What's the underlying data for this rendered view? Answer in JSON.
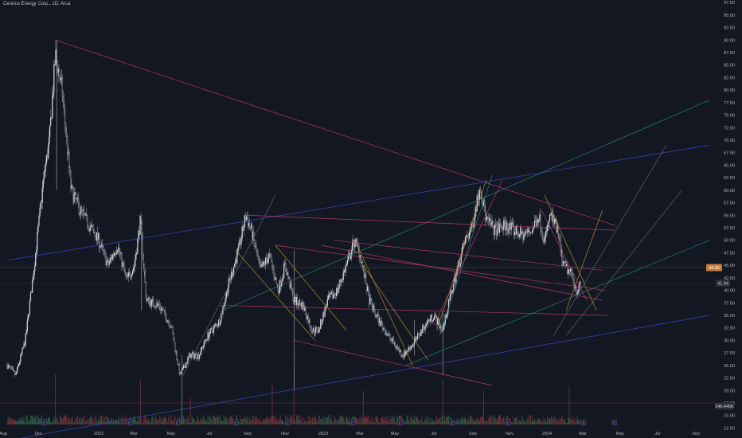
{
  "header": {
    "title": "Centrus Energy Corp., 1D, Arca"
  },
  "chart_data": {
    "type": "candlestick",
    "title": "Centrus Energy Corp., 1D, Arca",
    "y_ticks": [
      "12.50",
      "15.00",
      "17.50",
      "20.00",
      "22.50",
      "25.00",
      "27.50",
      "30.00",
      "32.50",
      "35.00",
      "37.50",
      "40.00",
      "42.50",
      "45.00",
      "47.50",
      "50.00",
      "52.50",
      "55.00",
      "57.50",
      "60.00",
      "62.50",
      "65.00",
      "67.50",
      "70.00",
      "72.50",
      "75.00",
      "77.50",
      "80.00",
      "82.50",
      "85.00",
      "87.50",
      "90.00",
      "92.50",
      "95.00",
      "97.50"
    ],
    "ylim": [
      10.5,
      98
    ],
    "x_ticks": [
      "Aug",
      "Oct",
      "2022",
      "Mar",
      "May",
      "Jul",
      "Sep",
      "Nov",
      "2023",
      "Mar",
      "May",
      "Jul",
      "Sep",
      "Nov",
      "2024",
      "Mar",
      "May",
      "Jul",
      "Sep"
    ],
    "last_price_label": "44.55",
    "last_price": 44.55,
    "marker_price_label": "41.44",
    "marker_price": 41.44,
    "volume_label": "246.445K",
    "price_path": [
      [
        "2021-08-01",
        25
      ],
      [
        "2021-08-15",
        23
      ],
      [
        "2021-08-31",
        30
      ],
      [
        "2021-09-15",
        45
      ],
      [
        "2021-09-30",
        62
      ],
      [
        "2021-10-10",
        70
      ],
      [
        "2021-10-20",
        87
      ],
      [
        "2021-10-31",
        80
      ],
      [
        "2021-11-15",
        60
      ],
      [
        "2021-11-30",
        56
      ],
      [
        "2021-12-15",
        53
      ],
      [
        "2021-12-31",
        50
      ],
      [
        "2022-01-15",
        45
      ],
      [
        "2022-01-31",
        49
      ],
      [
        "2022-02-15",
        42
      ],
      [
        "2022-02-28",
        45
      ],
      [
        "2022-03-10",
        54
      ],
      [
        "2022-03-20",
        38
      ],
      [
        "2022-04-10",
        37
      ],
      [
        "2022-04-30",
        33
      ],
      [
        "2022-05-15",
        23
      ],
      [
        "2022-05-31",
        27
      ],
      [
        "2022-06-15",
        27
      ],
      [
        "2022-06-30",
        31
      ],
      [
        "2022-07-20",
        34
      ],
      [
        "2022-08-05",
        42
      ],
      [
        "2022-08-20",
        48
      ],
      [
        "2022-09-01",
        55
      ],
      [
        "2022-09-10",
        52
      ],
      [
        "2022-09-25",
        44
      ],
      [
        "2022-10-10",
        47
      ],
      [
        "2022-10-25",
        40
      ],
      [
        "2022-11-05",
        45
      ],
      [
        "2022-11-20",
        38
      ],
      [
        "2022-12-05",
        37
      ],
      [
        "2022-12-20",
        32
      ],
      [
        "2022-12-31",
        32
      ],
      [
        "2023-01-15",
        38
      ],
      [
        "2023-01-31",
        40
      ],
      [
        "2023-02-15",
        45
      ],
      [
        "2023-03-01",
        50
      ],
      [
        "2023-03-10",
        47
      ],
      [
        "2023-03-25",
        38
      ],
      [
        "2023-04-05",
        35
      ],
      [
        "2023-04-25",
        31
      ],
      [
        "2023-05-20",
        27
      ],
      [
        "2023-06-10",
        30
      ],
      [
        "2023-06-25",
        33
      ],
      [
        "2023-07-10",
        35
      ],
      [
        "2023-07-25",
        32
      ],
      [
        "2023-08-05",
        38
      ],
      [
        "2023-08-20",
        45
      ],
      [
        "2023-08-31",
        50
      ],
      [
        "2023-09-10",
        52
      ],
      [
        "2023-09-20",
        58
      ],
      [
        "2023-09-25",
        61
      ],
      [
        "2023-10-05",
        54
      ],
      [
        "2023-10-20",
        52
      ],
      [
        "2023-11-05",
        53
      ],
      [
        "2023-11-20",
        52
      ],
      [
        "2023-12-05",
        51
      ],
      [
        "2023-12-20",
        52
      ],
      [
        "2023-12-31",
        55
      ],
      [
        "2024-01-10",
        50
      ],
      [
        "2024-01-20",
        55
      ],
      [
        "2024-01-31",
        52
      ],
      [
        "2024-02-10",
        45
      ],
      [
        "2024-02-25",
        43
      ],
      [
        "2024-03-03",
        40
      ],
      [
        "2024-03-10",
        41
      ]
    ],
    "volume_spikes": [
      [
        "2021-10-20",
        0.9
      ],
      [
        "2022-03-10",
        0.8
      ],
      [
        "2022-06-01",
        0.5
      ],
      [
        "2022-10-15",
        0.7
      ],
      [
        "2022-11-20",
        1.0
      ],
      [
        "2023-03-15",
        0.6
      ],
      [
        "2023-07-25",
        0.8
      ],
      [
        "2023-10-01",
        0.6
      ],
      [
        "2024-02-20",
        0.7
      ]
    ],
    "event_flags": [
      {
        "date": "2021-10-01",
        "type": "E"
      },
      {
        "date": "2022-02-20",
        "type": "E"
      },
      {
        "date": "2022-05-10",
        "type": "E"
      },
      {
        "date": "2022-08-15",
        "type": "E"
      },
      {
        "date": "2022-11-10",
        "type": "E"
      },
      {
        "date": "2023-02-25",
        "type": "E"
      },
      {
        "date": "2023-05-15",
        "type": "E"
      },
      {
        "date": "2023-08-10",
        "type": "E"
      },
      {
        "date": "2023-11-10",
        "type": "E"
      },
      {
        "date": "2024-03-15",
        "type": "E"
      },
      {
        "date": "2024-05-05",
        "type": "E"
      }
    ],
    "trend_lines": [
      {
        "from": [
          "2021-10-20",
          90
        ],
        "to": [
          "2024-05-05",
          53
        ],
        "color": "#d0407a"
      },
      {
        "from": [
          "2021-08-01",
          46
        ],
        "to": [
          "2024-10-10",
          69
        ],
        "color": "#3d4fd6"
      },
      {
        "from": [
          "2021-08-01",
          10
        ],
        "to": [
          "2024-10-10",
          35
        ],
        "color": "#3d4fd6"
      },
      {
        "from": [
          "2022-07-25",
          36
        ],
        "to": [
          "2024-10-10",
          78
        ],
        "color": "#2a8f8a"
      },
      {
        "from": [
          "2022-09-01",
          55
        ],
        "to": [
          "2024-05-05",
          52
        ],
        "color": "#d0407a"
      },
      {
        "from": [
          "2022-07-20",
          37
        ],
        "to": [
          "2024-04-25",
          35
        ],
        "color": "#d0407a"
      },
      {
        "from": [
          "2022-10-20",
          49
        ],
        "to": [
          "2024-04-20",
          40
        ],
        "color": "#d0407a"
      },
      {
        "from": [
          "2023-01-25",
          50
        ],
        "to": [
          "2024-04-15",
          44
        ],
        "color": "#d0407a"
      },
      {
        "from": [
          "2023-01-05",
          49
        ],
        "to": [
          "2024-04-15",
          38
        ],
        "color": "#d0407a"
      },
      {
        "from": [
          "2022-11-20",
          30
        ],
        "to": [
          "2023-10-15",
          21
        ],
        "color": "#d0407a"
      },
      {
        "from": [
          "2023-05-25",
          25
        ],
        "to": [
          "2024-10-10",
          50
        ],
        "color": "#2a8f8a"
      },
      {
        "from": [
          "2022-05-20",
          23
        ],
        "to": [
          "2022-10-20",
          59
        ],
        "color": "#6b6f78"
      },
      {
        "from": [
          "2023-07-20",
          31
        ],
        "to": [
          "2023-10-15",
          63
        ],
        "color": "#2a8f8a"
      },
      {
        "from": [
          "2024-01-25",
          31
        ],
        "to": [
          "2024-07-30",
          69
        ],
        "color": "#6b6f78"
      },
      {
        "from": [
          "2024-02-15",
          31
        ],
        "to": [
          "2024-08-25",
          60
        ],
        "color": "#6b6f78"
      },
      {
        "from": [
          "2022-08-15",
          48
        ],
        "to": [
          "2022-12-25",
          30
        ],
        "color": "#c9a227"
      },
      {
        "from": [
          "2022-10-20",
          49
        ],
        "to": [
          "2023-02-15",
          32
        ],
        "color": "#c9a227"
      },
      {
        "from": [
          "2023-03-01",
          50
        ],
        "to": [
          "2023-06-05",
          25
        ],
        "color": "#c9a227"
      },
      {
        "from": [
          "2023-03-15",
          45
        ],
        "to": [
          "2023-07-01",
          26
        ],
        "color": "#c9a227"
      },
      {
        "from": [
          "2023-07-15",
          32
        ],
        "to": [
          "2023-10-05",
          62
        ],
        "color": "#c9a227"
      },
      {
        "from": [
          "2024-01-10",
          59
        ],
        "to": [
          "2024-04-05",
          36
        ],
        "color": "#c9a227"
      },
      {
        "from": [
          "2024-02-15",
          36
        ],
        "to": [
          "2024-04-15",
          56
        ],
        "color": "#c9a227"
      },
      {
        "from": [
          "2023-07-10",
          33
        ],
        "to": [
          "2023-11-01",
          62
        ],
        "color": "#d0407a"
      },
      {
        "from": [
          "2024-01-05",
          56
        ],
        "to": [
          "2024-03-20",
          38
        ],
        "color": "#d0407a"
      }
    ],
    "x_range": [
      "2021-07-20",
      "2024-09-25"
    ],
    "grid": true
  }
}
